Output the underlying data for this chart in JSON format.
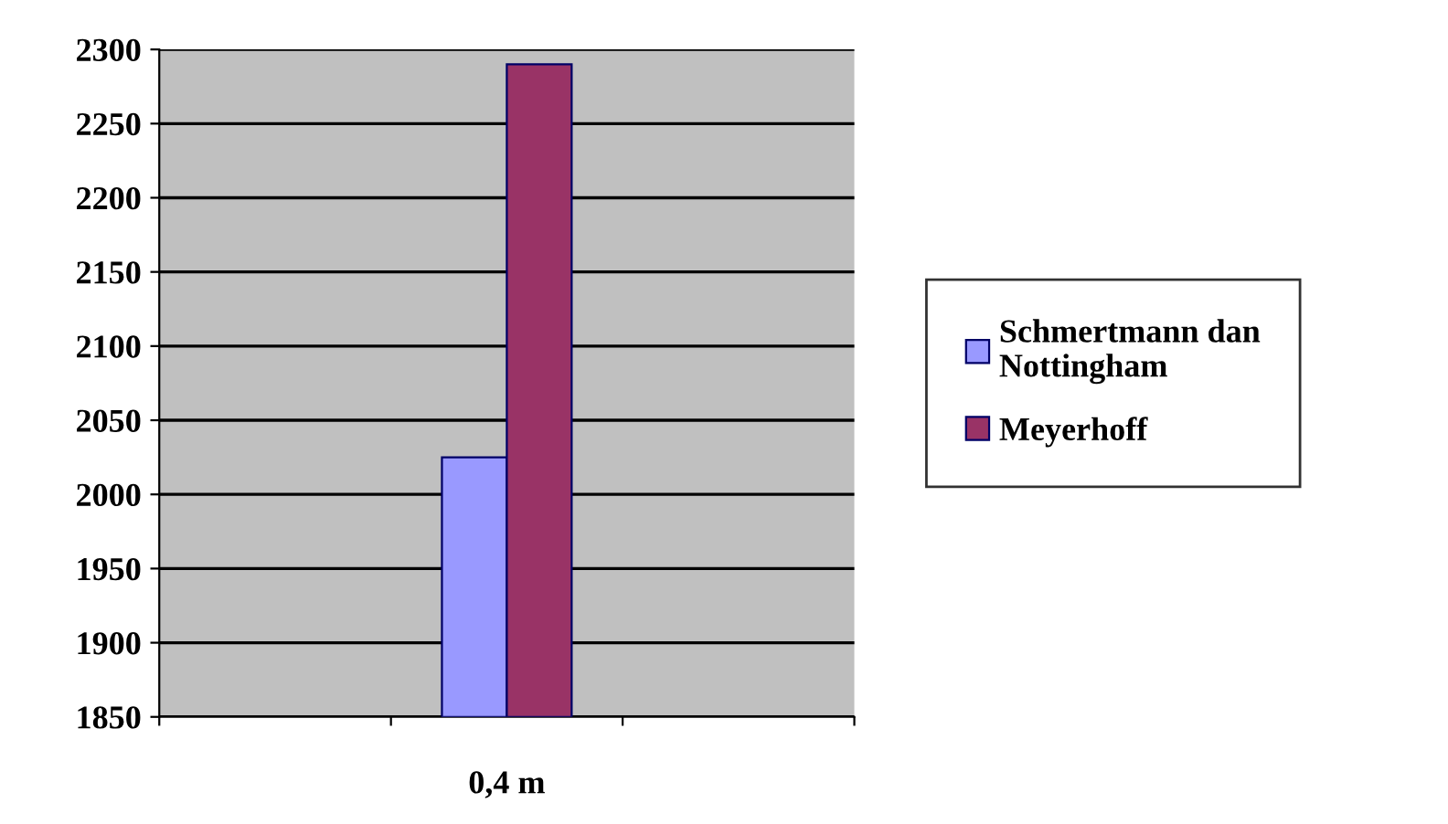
{
  "chart_data": {
    "type": "bar",
    "categories": [
      null,
      "0,4 m",
      null
    ],
    "series": [
      {
        "name": "Schmertmann dan\nNottingham",
        "color": "#9999ff",
        "values": [
          null,
          2025,
          null
        ]
      },
      {
        "name": "Meyerhoff",
        "color": "#993366",
        "values": [
          null,
          2290,
          null
        ]
      }
    ],
    "ylim": [
      1850,
      2300
    ],
    "yticks": [
      1850,
      1900,
      1950,
      2000,
      2050,
      2100,
      2150,
      2200,
      2250,
      2300
    ],
    "grid": "y",
    "legend": "right"
  }
}
